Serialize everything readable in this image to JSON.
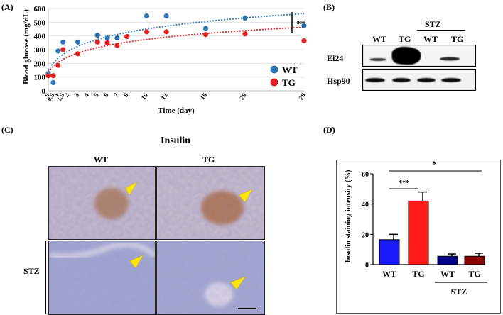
{
  "panelA": {
    "label": "(A)",
    "chart_data": {
      "type": "scatter",
      "xlabel": "Time (day)",
      "ylabel": "Blood glucose (mg/dL)",
      "ylim": [
        0,
        600
      ],
      "yticks": [
        "0",
        "100",
        "200",
        "300",
        "400",
        "500",
        "600"
      ],
      "xticks": [
        "0",
        "0.5",
        "1",
        "1.5",
        "2",
        "3",
        "4",
        "5",
        "6",
        "7",
        "8",
        "10",
        "12",
        "16",
        "20",
        "26"
      ],
      "significance": "**",
      "series": [
        {
          "name": "WT",
          "color": "#2e75b6",
          "x": [
            "0",
            "0.5",
            "1",
            "1.5",
            "3",
            "5",
            "6",
            "7",
            "8",
            "10",
            "12",
            "16",
            "20",
            "26"
          ],
          "y": [
            125,
            60,
            290,
            355,
            355,
            405,
            385,
            385,
            395,
            545,
            545,
            455,
            530,
            475
          ]
        },
        {
          "name": "TG",
          "color": "#e02020",
          "x": [
            "0",
            "0.5",
            "1",
            "1.5",
            "3",
            "5",
            "6",
            "7",
            "8",
            "10",
            "12",
            "16",
            "20",
            "26"
          ],
          "y": [
            110,
            110,
            185,
            300,
            270,
            355,
            350,
            330,
            395,
            430,
            430,
            410,
            415,
            365
          ]
        }
      ]
    }
  },
  "panelB": {
    "label": "(B)",
    "group_label": "STZ",
    "lanes": [
      "WT",
      "TG",
      "WT",
      "TG"
    ],
    "rows": [
      "Ei24",
      "Hsp90"
    ]
  },
  "panelC": {
    "label": "(C)",
    "title": "Insulin",
    "cols": [
      "WT",
      "TG"
    ],
    "row_label": "STZ"
  },
  "panelD": {
    "label": "(D)",
    "chart_data": {
      "type": "bar",
      "ylabel": "Insulin staining intensity (%)",
      "ylim": [
        0,
        60
      ],
      "yticks": [
        "0",
        "20",
        "40",
        "60"
      ],
      "categories": [
        "WT",
        "TG",
        "WT",
        "TG"
      ],
      "values": [
        16.5,
        42,
        5.5,
        5.5
      ],
      "errors": [
        3.5,
        6,
        1.5,
        2
      ],
      "colors": [
        "#1a1aff",
        "#ff1a1a",
        "#00008b",
        "#8b0000"
      ],
      "group_label": "STZ",
      "sig": [
        "***",
        "*"
      ]
    }
  }
}
